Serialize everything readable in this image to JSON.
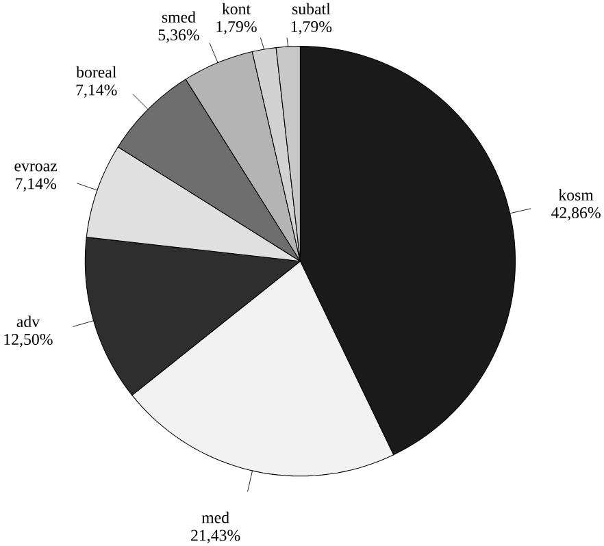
{
  "chart_data": {
    "type": "pie",
    "categories": [
      "kosm",
      "med",
      "adv",
      "evroaz",
      "boreal",
      "smed",
      "kont",
      "subatl"
    ],
    "values": [
      42.86,
      21.43,
      12.5,
      7.14,
      7.14,
      5.36,
      1.79,
      1.79
    ],
    "value_labels": [
      "42,86%",
      "21,43%",
      "12,50%",
      "7,14%",
      "7,14%",
      "5,36%",
      "1,79%",
      "1,79%"
    ],
    "colors": [
      "#1a1a1a",
      "#f2f2f2",
      "#2e2e2e",
      "#e0e0e0",
      "#6e6e6e",
      "#b4b4b4",
      "#d2d2d2",
      "#c8c8c8"
    ]
  }
}
